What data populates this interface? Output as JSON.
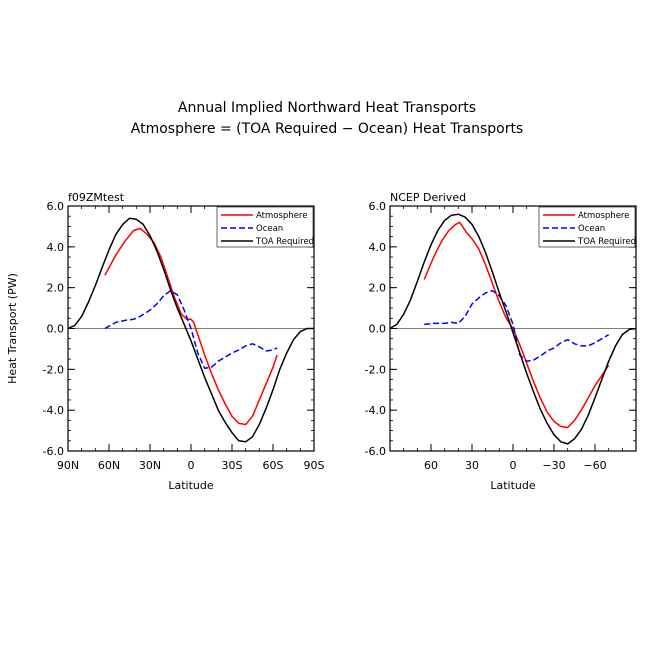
{
  "figure": {
    "title_line1": "Annual Implied Northward Heat Transports",
    "title_line2": "Atmosphere = (TOA Required − Ocean) Heat Transports"
  },
  "chart_data": [
    {
      "type": "line",
      "panel_title": "f09ZMtest",
      "xlabel": "Latitude",
      "ylabel": "Heat Transport (PW)",
      "xlim": [
        90,
        -90
      ],
      "ylim": [
        -6,
        6
      ],
      "x_ticks": [
        {
          "value": 90,
          "label": "90N"
        },
        {
          "value": 60,
          "label": "60N"
        },
        {
          "value": 30,
          "label": "30N"
        },
        {
          "value": 0,
          "label": "0"
        },
        {
          "value": -30,
          "label": "30S"
        },
        {
          "value": -60,
          "label": "60S"
        },
        {
          "value": -90,
          "label": "90S"
        }
      ],
      "y_ticks": [
        {
          "value": 6,
          "label": "6.0"
        },
        {
          "value": 4,
          "label": "4.0"
        },
        {
          "value": 2,
          "label": "2.0"
        },
        {
          "value": 0,
          "label": "0.0"
        },
        {
          "value": -2,
          "label": "-2.0"
        },
        {
          "value": -4,
          "label": "-4.0"
        },
        {
          "value": -6,
          "label": "-6.0"
        }
      ],
      "zero_line": true,
      "legend_position": "top-right",
      "series": [
        {
          "name": "Atmosphere",
          "color": "#ff0000",
          "dash": "solid",
          "x": [
            63,
            55,
            48,
            42,
            37,
            32,
            27,
            22,
            17,
            12,
            7,
            3,
            0,
            -2,
            -5,
            -10,
            -15,
            -20,
            -25,
            -30,
            -35,
            -40,
            -45,
            -50,
            -55,
            -60,
            -63
          ],
          "y": [
            2.6,
            3.6,
            4.3,
            4.8,
            4.9,
            4.6,
            4.2,
            3.5,
            2.5,
            1.5,
            0.7,
            0.45,
            0.45,
            0.3,
            -0.3,
            -1.3,
            -2.2,
            -3.0,
            -3.7,
            -4.3,
            -4.65,
            -4.7,
            -4.3,
            -3.5,
            -2.7,
            -1.9,
            -1.3
          ]
        },
        {
          "name": "Ocean",
          "color": "#0000ff",
          "dash": "dashed",
          "x": [
            63,
            55,
            48,
            42,
            37,
            30,
            25,
            20,
            15,
            10,
            5,
            0,
            -5,
            -10,
            -15,
            -20,
            -25,
            -30,
            -35,
            -40,
            -45,
            -50,
            -55,
            -60,
            -63
          ],
          "y": [
            0.0,
            0.3,
            0.4,
            0.45,
            0.6,
            0.9,
            1.2,
            1.6,
            1.85,
            1.65,
            0.9,
            0.0,
            -1.2,
            -1.95,
            -1.9,
            -1.6,
            -1.4,
            -1.2,
            -1.05,
            -0.85,
            -0.75,
            -0.9,
            -1.1,
            -1.05,
            -0.95
          ]
        },
        {
          "name": "TOA Required",
          "color": "#000000",
          "dash": "solid",
          "x": [
            90,
            85,
            80,
            75,
            70,
            65,
            60,
            55,
            50,
            45,
            40,
            35,
            30,
            25,
            20,
            15,
            10,
            5,
            0,
            -5,
            -10,
            -15,
            -20,
            -25,
            -30,
            -35,
            -40,
            -45,
            -50,
            -55,
            -60,
            -65,
            -70,
            -75,
            -80,
            -85,
            -90
          ],
          "y": [
            0.0,
            0.15,
            0.6,
            1.3,
            2.1,
            3.0,
            3.85,
            4.6,
            5.1,
            5.4,
            5.35,
            5.1,
            4.55,
            3.8,
            2.9,
            1.9,
            1.0,
            0.2,
            -0.6,
            -1.5,
            -2.4,
            -3.2,
            -4.0,
            -4.6,
            -5.1,
            -5.5,
            -5.55,
            -5.3,
            -4.7,
            -3.9,
            -3.0,
            -2.0,
            -1.2,
            -0.55,
            -0.15,
            0.0,
            0.0
          ]
        }
      ]
    },
    {
      "type": "line",
      "panel_title": "NCEP Derived",
      "xlabel": "Latitude",
      "ylabel": "",
      "xlim": [
        90,
        -90
      ],
      "ylim": [
        -6,
        6
      ],
      "x_ticks": [
        {
          "value": 60,
          "label": "60"
        },
        {
          "value": 30,
          "label": "30"
        },
        {
          "value": 0,
          "label": "0"
        },
        {
          "value": -30,
          "label": "−30"
        },
        {
          "value": -60,
          "label": "−60"
        }
      ],
      "y_ticks": [
        {
          "value": 6,
          "label": "6.0"
        },
        {
          "value": 4,
          "label": "4.0"
        },
        {
          "value": 2,
          "label": "2.0"
        },
        {
          "value": 0,
          "label": "0.0"
        },
        {
          "value": -2,
          "label": "-2.0"
        },
        {
          "value": -4,
          "label": "-4.0"
        },
        {
          "value": -6,
          "label": "-6.0"
        }
      ],
      "zero_line": true,
      "legend_position": "top-right",
      "series": [
        {
          "name": "Atmosphere",
          "color": "#ff0000",
          "dash": "solid",
          "x": [
            65,
            58,
            52,
            47,
            42,
            39,
            37,
            34,
            30,
            25,
            20,
            15,
            10,
            5,
            0,
            -5,
            -10,
            -15,
            -20,
            -25,
            -30,
            -35,
            -40,
            -45,
            -50,
            -55,
            -60,
            -65,
            -70
          ],
          "y": [
            2.4,
            3.5,
            4.3,
            4.8,
            5.1,
            5.2,
            5.0,
            4.7,
            4.4,
            3.9,
            3.1,
            2.2,
            1.3,
            0.5,
            0.0,
            -0.8,
            -1.7,
            -2.6,
            -3.4,
            -4.1,
            -4.55,
            -4.8,
            -4.85,
            -4.5,
            -4.0,
            -3.4,
            -2.8,
            -2.3,
            -1.8
          ]
        },
        {
          "name": "Ocean",
          "color": "#0000ff",
          "dash": "dashed",
          "x": [
            65,
            58,
            50,
            45,
            40,
            35,
            30,
            25,
            20,
            15,
            10,
            5,
            0,
            -5,
            -10,
            -15,
            -20,
            -25,
            -30,
            -35,
            -40,
            -45,
            -50,
            -55,
            -60,
            -65,
            -70
          ],
          "y": [
            0.2,
            0.25,
            0.25,
            0.3,
            0.25,
            0.6,
            1.2,
            1.5,
            1.75,
            1.85,
            1.6,
            1.1,
            0.2,
            -1.3,
            -1.6,
            -1.55,
            -1.35,
            -1.1,
            -0.95,
            -0.7,
            -0.55,
            -0.75,
            -0.85,
            -0.85,
            -0.7,
            -0.5,
            -0.3
          ]
        },
        {
          "name": "TOA Required",
          "color": "#000000",
          "dash": "solid",
          "x": [
            90,
            85,
            80,
            75,
            70,
            65,
            60,
            55,
            50,
            45,
            40,
            35,
            30,
            25,
            20,
            15,
            10,
            5,
            0,
            -5,
            -10,
            -15,
            -20,
            -25,
            -30,
            -35,
            -40,
            -45,
            -50,
            -55,
            -60,
            -65,
            -70,
            -75,
            -80,
            -85,
            -90
          ],
          "y": [
            0.0,
            0.2,
            0.7,
            1.4,
            2.3,
            3.25,
            4.1,
            4.8,
            5.3,
            5.55,
            5.6,
            5.45,
            5.1,
            4.5,
            3.7,
            2.75,
            1.75,
            0.8,
            -0.2,
            -1.2,
            -2.2,
            -3.1,
            -3.95,
            -4.65,
            -5.2,
            -5.55,
            -5.65,
            -5.4,
            -4.95,
            -4.25,
            -3.4,
            -2.5,
            -1.6,
            -0.85,
            -0.3,
            -0.05,
            0.0
          ]
        }
      ]
    }
  ]
}
